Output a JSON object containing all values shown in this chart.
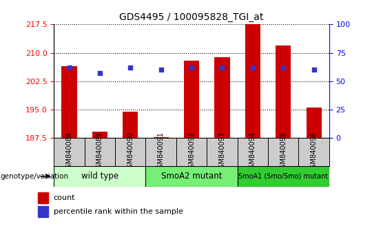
{
  "title": "GDS4495 / 100095828_TGI_at",
  "samples": [
    "GSM840088",
    "GSM840089",
    "GSM840090",
    "GSM840091",
    "GSM840092",
    "GSM840093",
    "GSM840094",
    "GSM840095",
    "GSM840096"
  ],
  "counts": [
    206.5,
    189.2,
    194.5,
    187.6,
    208.0,
    208.8,
    217.5,
    212.0,
    195.5
  ],
  "percentile_ranks": [
    62,
    57,
    62,
    60,
    62,
    62,
    62,
    62,
    60
  ],
  "ylim_left": [
    187.5,
    217.5
  ],
  "yticks_left": [
    187.5,
    195.0,
    202.5,
    210.0,
    217.5
  ],
  "ylim_right": [
    0,
    100
  ],
  "yticks_right": [
    0,
    25,
    50,
    75,
    100
  ],
  "bar_color": "#cc0000",
  "dot_color": "#3333cc",
  "bar_bottom": 187.5,
  "bg_color": "#ffffff",
  "xticklabel_bg": "#cccccc",
  "genotype_groups": [
    {
      "label": "wild type",
      "start": 0,
      "end": 3,
      "color": "#ccffcc"
    },
    {
      "label": "SmoA2 mutant",
      "start": 3,
      "end": 6,
      "color": "#77ee77"
    },
    {
      "label": "SmoA1 (Smo/Smo) mutant",
      "start": 6,
      "end": 9,
      "color": "#33cc33"
    }
  ],
  "genotype_label": "genotype/variation"
}
